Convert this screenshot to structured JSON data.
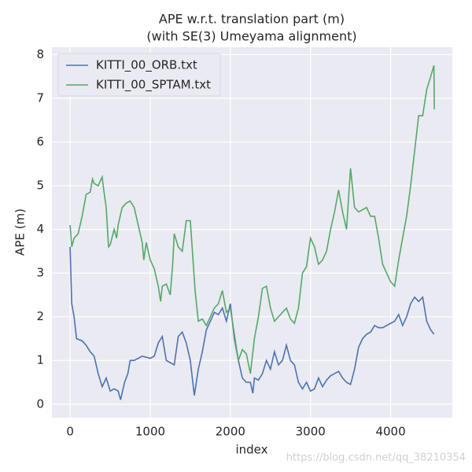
{
  "chart_data": {
    "type": "line",
    "title": [
      "APE w.r.t. translation part (m)",
      "(with SE(3) Umeyama alignment)"
    ],
    "xlabel": "index",
    "ylabel": "APE (m)",
    "annotation": "https://blog.csdn.net/qq_38210354",
    "xlim": [
      -227,
      4770
    ],
    "xticks": [
      0,
      1000,
      2000,
      3000,
      4000
    ],
    "ylim": [
      -0.31,
      8.17
    ],
    "yticks": [
      0,
      1,
      2,
      3,
      4,
      5,
      6,
      7,
      8
    ],
    "grid": true,
    "legend": "upper left",
    "series": [
      {
        "name": "KITTI_00_ORB.txt",
        "color": "#4c72b0",
        "x": [
          0,
          20,
          50,
          80,
          150,
          200,
          250,
          300,
          350,
          400,
          450,
          500,
          550,
          600,
          630,
          680,
          720,
          750,
          800,
          850,
          900,
          1000,
          1050,
          1100,
          1150,
          1200,
          1250,
          1300,
          1350,
          1400,
          1450,
          1500,
          1550,
          1600,
          1650,
          1700,
          1750,
          1800,
          1850,
          1900,
          1950,
          2000,
          2050,
          2100,
          2150,
          2200,
          2250,
          2280,
          2300,
          2350,
          2400,
          2450,
          2500,
          2550,
          2600,
          2650,
          2700,
          2750,
          2800,
          2850,
          2900,
          2950,
          3000,
          3050,
          3100,
          3150,
          3200,
          3250,
          3300,
          3350,
          3400,
          3450,
          3500,
          3550,
          3600,
          3650,
          3700,
          3750,
          3800,
          3850,
          3900,
          3950,
          4000,
          4050,
          4100,
          4150,
          4200,
          4250,
          4300,
          4350,
          4400,
          4450,
          4500,
          4540
        ],
        "values": [
          3.6,
          2.3,
          2.0,
          1.5,
          1.45,
          1.35,
          1.2,
          1.1,
          0.7,
          0.4,
          0.6,
          0.3,
          0.35,
          0.3,
          0.1,
          0.5,
          0.7,
          1.0,
          1.0,
          1.05,
          1.1,
          1.05,
          1.1,
          1.4,
          1.55,
          1.0,
          0.95,
          0.9,
          1.55,
          1.65,
          1.4,
          1.0,
          0.2,
          0.8,
          1.2,
          1.7,
          1.9,
          2.1,
          2.05,
          2.2,
          1.9,
          2.3,
          1.5,
          1.0,
          0.6,
          0.5,
          0.5,
          0.25,
          0.6,
          0.55,
          0.7,
          1.0,
          0.8,
          1.2,
          0.9,
          1.0,
          1.35,
          1.0,
          0.9,
          0.5,
          0.35,
          0.5,
          0.3,
          0.35,
          0.6,
          0.4,
          0.55,
          0.65,
          0.7,
          0.75,
          0.6,
          0.5,
          0.45,
          0.8,
          1.3,
          1.5,
          1.6,
          1.65,
          1.8,
          1.75,
          1.75,
          1.8,
          1.85,
          1.9,
          2.05,
          1.8,
          2.0,
          2.3,
          2.45,
          2.35,
          2.45,
          1.9,
          1.7,
          1.6
        ]
      },
      {
        "name": "KITTI_00_SPTAM.txt",
        "color": "#55a868",
        "x": [
          0,
          20,
          50,
          100,
          150,
          200,
          250,
          280,
          300,
          350,
          400,
          420,
          450,
          480,
          500,
          550,
          580,
          600,
          650,
          700,
          750,
          800,
          850,
          900,
          920,
          950,
          1000,
          1050,
          1100,
          1130,
          1150,
          1200,
          1250,
          1280,
          1300,
          1350,
          1400,
          1450,
          1500,
          1530,
          1560,
          1600,
          1650,
          1700,
          1750,
          1800,
          1850,
          1900,
          1950,
          2000,
          2050,
          2100,
          2150,
          2200,
          2250,
          2300,
          2350,
          2400,
          2450,
          2500,
          2550,
          2600,
          2650,
          2700,
          2750,
          2800,
          2850,
          2900,
          2950,
          3000,
          3050,
          3100,
          3150,
          3200,
          3250,
          3300,
          3350,
          3400,
          3450,
          3500,
          3550,
          3600,
          3650,
          3700,
          3750,
          3800,
          3850,
          3900,
          3950,
          4000,
          4050,
          4100,
          4150,
          4200,
          4250,
          4300,
          4350,
          4400,
          4450,
          4500,
          4540,
          4545
        ],
        "values": [
          4.1,
          3.6,
          3.8,
          3.9,
          4.3,
          4.8,
          4.85,
          5.15,
          5.05,
          5.0,
          5.2,
          4.9,
          4.5,
          3.6,
          3.65,
          4.0,
          3.8,
          4.1,
          4.5,
          4.6,
          4.65,
          4.5,
          4.1,
          3.7,
          3.3,
          3.7,
          3.3,
          3.1,
          2.7,
          2.35,
          2.7,
          2.75,
          2.5,
          3.2,
          3.9,
          3.6,
          3.5,
          4.2,
          4.2,
          3.4,
          2.6,
          1.9,
          1.95,
          1.8,
          2.0,
          2.2,
          2.3,
          2.6,
          2.1,
          2.2,
          1.6,
          1.0,
          1.25,
          1.15,
          0.7,
          1.5,
          2.0,
          2.65,
          2.7,
          2.2,
          1.9,
          2.0,
          2.1,
          2.2,
          1.95,
          1.85,
          2.2,
          3.0,
          3.15,
          3.8,
          3.6,
          3.2,
          3.3,
          3.5,
          4.0,
          4.4,
          4.9,
          4.4,
          4.0,
          5.4,
          4.5,
          4.4,
          4.45,
          4.5,
          4.3,
          4.3,
          3.8,
          3.2,
          3.0,
          2.8,
          2.7,
          3.3,
          3.8,
          4.3,
          5.0,
          5.8,
          6.6,
          6.6,
          7.2,
          7.5,
          7.75,
          6.75
        ]
      }
    ]
  }
}
